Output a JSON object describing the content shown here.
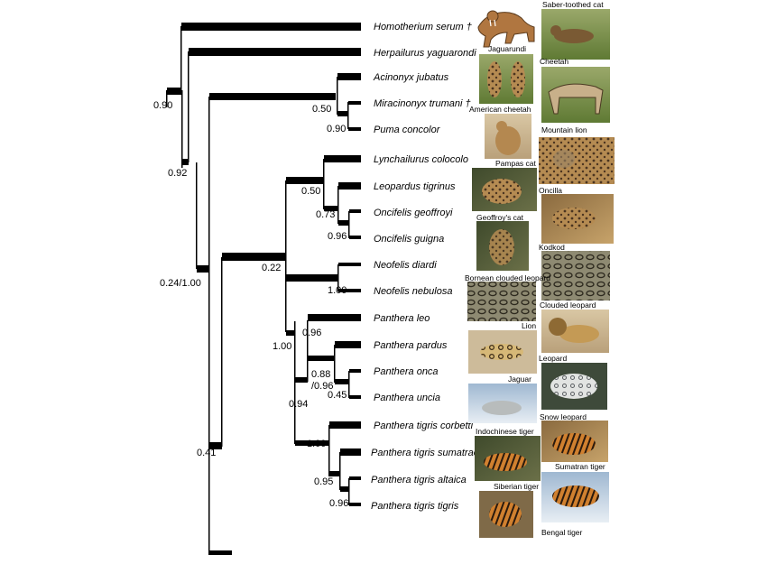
{
  "taxa": [
    "Homotherium serum †",
    "Herpailurus yaguarondi",
    "Acinonyx jubatus",
    "Miracinonyx trumani †",
    "Puma concolor",
    "Lynchailurus colocolo",
    "Leopardus tigrinus",
    "Oncifelis geoffroyi",
    "Oncifelis guigna",
    "Neofelis diardi",
    "Neofelis nebulosa",
    "Panthera leo",
    "Panthera pardus",
    "Panthera onca",
    "Panthera uncia",
    "Panthera tigris corbetti",
    "Panthera tigris sumatrae",
    "Panthera tigris altaica",
    "Panthera tigris tigris"
  ],
  "support": [
    "0.90",
    "0.92",
    "0.50",
    "0.90",
    "0.24/1.00",
    "0.22",
    "0.50",
    "0.73",
    "0.96",
    "1.00",
    "1.00",
    "0.96",
    "0.88",
    "/0.96",
    "0.45",
    "0.94",
    "0.41",
    "1.00",
    "0.95",
    "0.96"
  ],
  "photo_captions": [
    "Saber-toothed cat",
    "Jaguarundi",
    "Cheetah",
    "American cheetah",
    "Mountain lion",
    "Pampas cat",
    "Oncilla",
    "Geoffroy's cat",
    "Kodkod",
    "Bornean clouded leopard",
    "Clouded leopard",
    "Lion",
    "Leopard",
    "Jaguar",
    "Snow leopard",
    "Indochinese tiger",
    "Sumatran tiger",
    "Siberian tiger",
    "Bengal tiger"
  ],
  "colors": {
    "lines": "#000000",
    "fur_tan": "#b08a55",
    "fur_orange": "#c9782f",
    "grass_green": "#7b8f4a",
    "snow_blue": "#c7d7e6",
    "forest_dark": "#4f5a3a"
  }
}
